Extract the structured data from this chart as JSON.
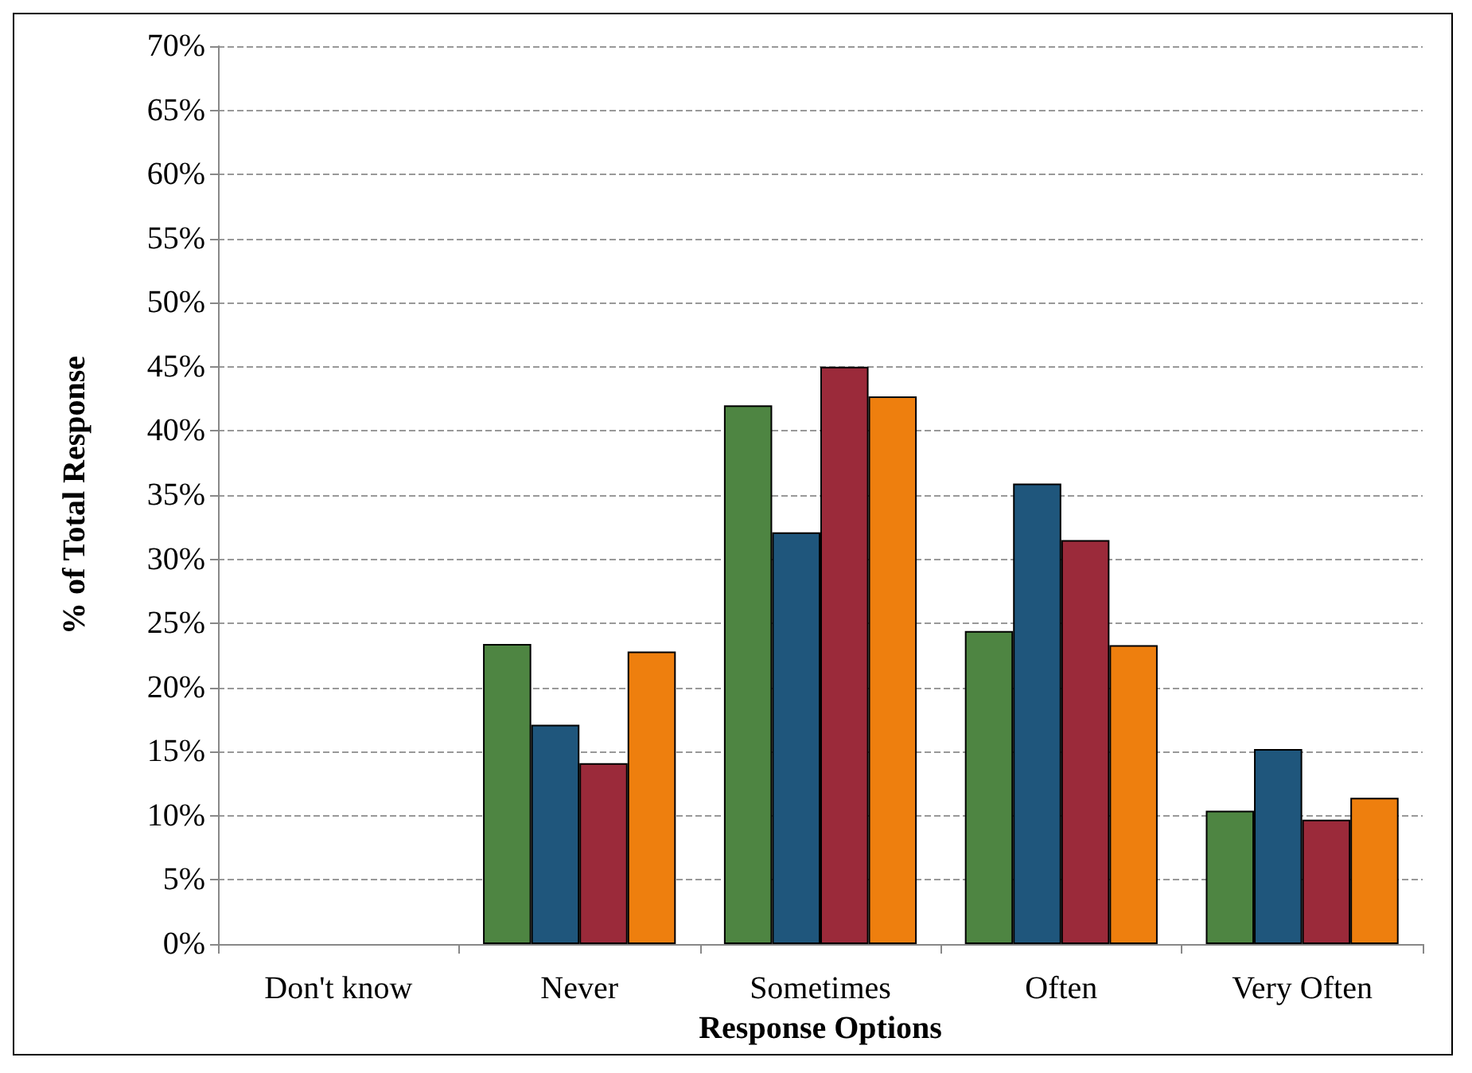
{
  "chart_data": {
    "type": "bar",
    "xlabel": "Response Options",
    "ylabel": "% of Total Response",
    "categories": [
      "Don't know",
      "Never",
      "Sometimes",
      "Often",
      "Very Often"
    ],
    "series": [
      {
        "color": "#4e8542",
        "values": [
          0,
          23.4,
          42.0,
          24.4,
          10.4
        ]
      },
      {
        "color": "#1f567c",
        "values": [
          0,
          17.1,
          32.1,
          35.9,
          15.2
        ]
      },
      {
        "color": "#9b2a3a",
        "values": [
          0,
          14.1,
          45.0,
          31.5,
          9.7
        ]
      },
      {
        "color": "#ee7f0e",
        "values": [
          0,
          22.8,
          42.7,
          23.3,
          11.4
        ]
      }
    ],
    "ylim": [
      0,
      70
    ],
    "yticks": [
      {
        "value": 0,
        "label": "0%"
      },
      {
        "value": 5,
        "label": "5%"
      },
      {
        "value": 10,
        "label": "10%"
      },
      {
        "value": 15,
        "label": "15%"
      },
      {
        "value": 20,
        "label": "20%"
      },
      {
        "value": 25,
        "label": "25%"
      },
      {
        "value": 30,
        "label": "30%"
      },
      {
        "value": 35,
        "label": "35%"
      },
      {
        "value": 40,
        "label": "40%"
      },
      {
        "value": 45,
        "label": "45%"
      },
      {
        "value": 50,
        "label": "50%"
      },
      {
        "value": 55,
        "label": "55%"
      },
      {
        "value": 60,
        "label": "60%"
      },
      {
        "value": 65,
        "label": "65%"
      },
      {
        "value": 70,
        "label": "70%"
      }
    ],
    "grid": "y"
  }
}
